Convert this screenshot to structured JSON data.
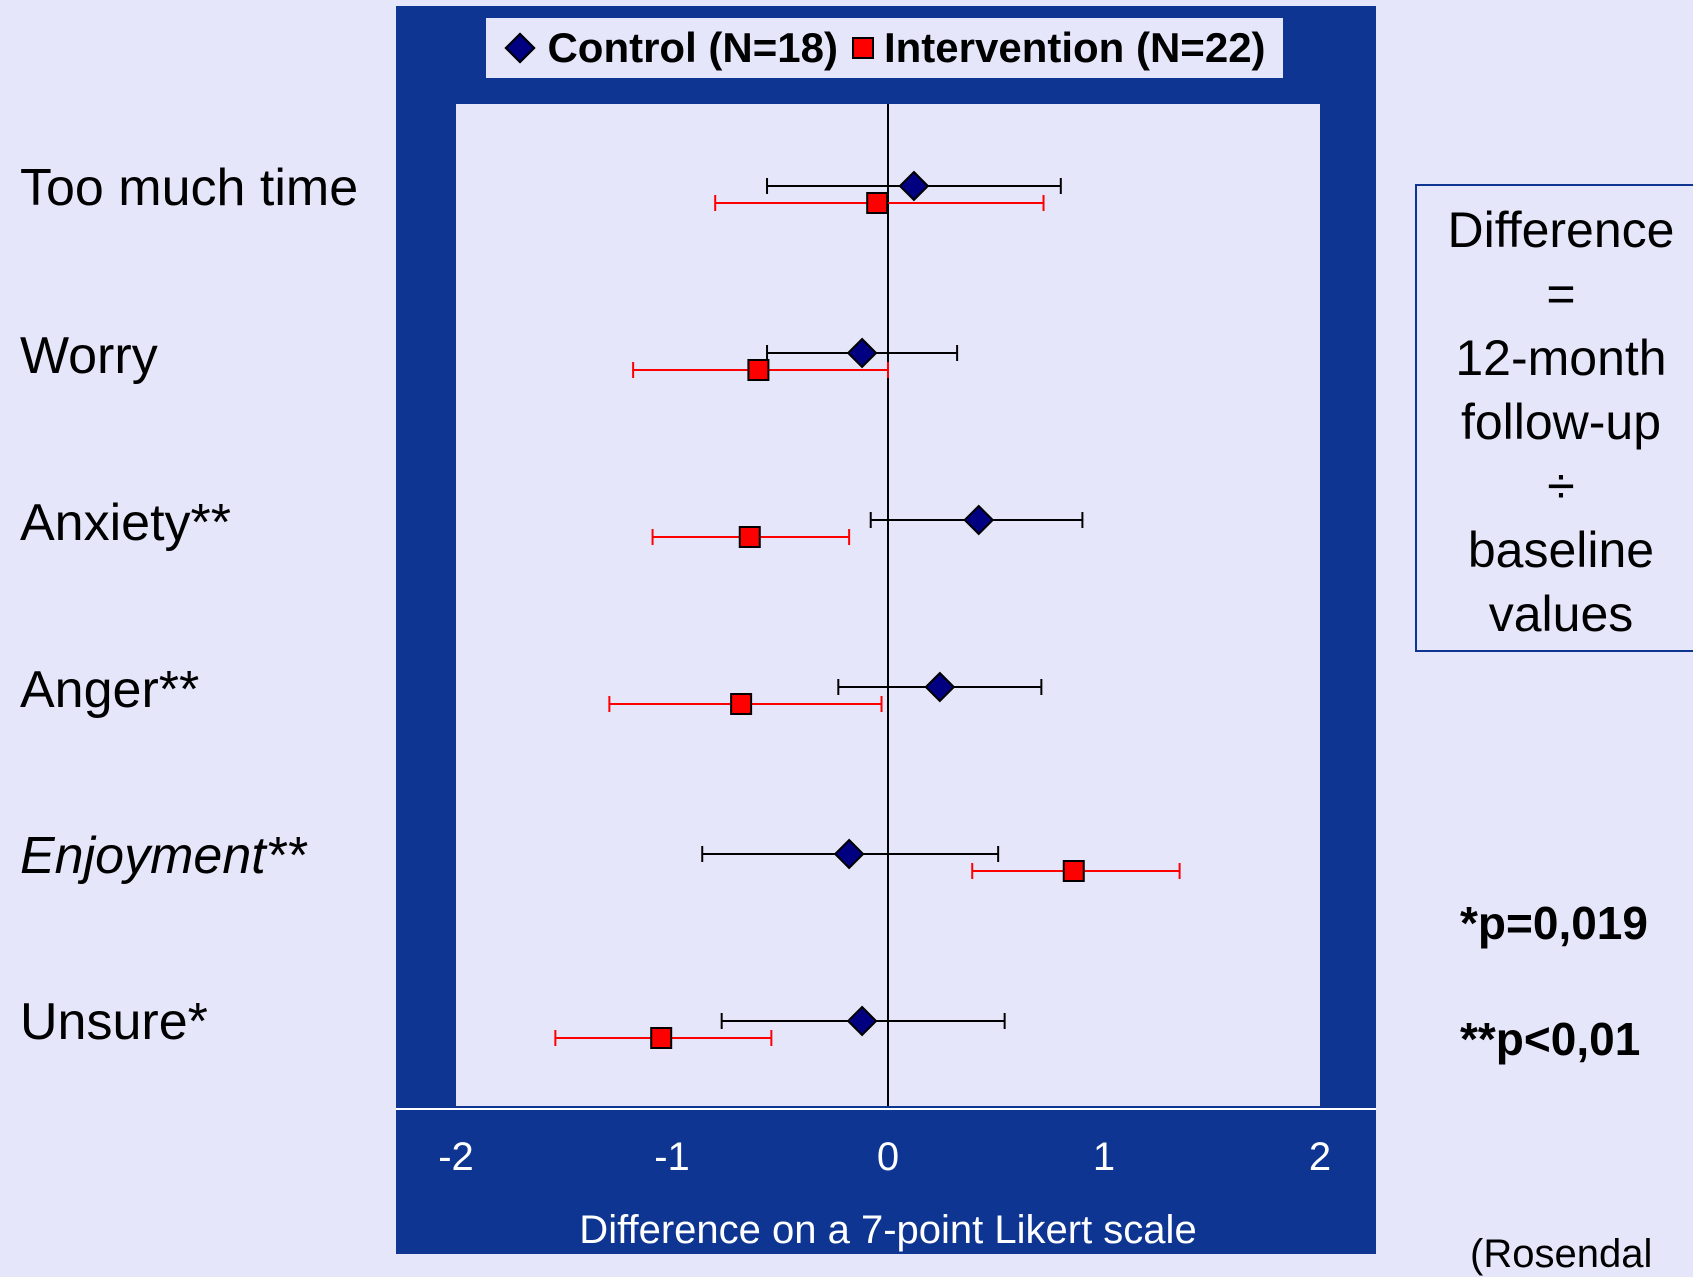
{
  "chart_data": {
    "type": "scatter",
    "title": "",
    "xlabel": "Difference on a 7-point Likert scale",
    "ylabel": "",
    "xlim": [
      -2,
      2
    ],
    "xticks": [
      "-2",
      "-1",
      "0",
      "1",
      "2"
    ],
    "xtick_values": [
      -2,
      -1,
      0,
      1,
      2
    ],
    "categories": [
      "Too much time",
      "Worry",
      "Anxiety**",
      "Anger**",
      "Enjoyment**",
      "Unsure*"
    ],
    "category_italic": [
      false,
      false,
      false,
      false,
      true,
      false
    ],
    "legend_position": "top-center",
    "grid": false,
    "series": [
      {
        "name": "Control (N=18)",
        "marker": "diamond",
        "color": "#000080",
        "error_color": "#000000",
        "values": [
          0.12,
          -0.12,
          0.42,
          0.24,
          -0.18,
          -0.12
        ],
        "lower": [
          -0.56,
          -0.56,
          -0.08,
          -0.23,
          -0.86,
          -0.77
        ],
        "upper": [
          0.8,
          0.32,
          0.9,
          0.71,
          0.51,
          0.54
        ]
      },
      {
        "name": "Intervention (N=22)",
        "marker": "square",
        "color": "#ff0000",
        "error_color": "#ff0000",
        "values": [
          -0.05,
          -0.6,
          -0.64,
          -0.68,
          0.86,
          -1.05
        ],
        "lower": [
          -0.8,
          -1.18,
          -1.09,
          -1.29,
          0.39,
          -1.54
        ],
        "upper": [
          0.72,
          0.0,
          -0.18,
          -0.03,
          1.35,
          -0.54
        ]
      }
    ]
  },
  "note": {
    "lines": [
      "Difference",
      "=",
      "12-month",
      "follow-up",
      "÷",
      "baseline",
      "values"
    ]
  },
  "pvalues": [
    "*p=0,019",
    "**p<0,01"
  ],
  "source": "(Rosendal"
}
